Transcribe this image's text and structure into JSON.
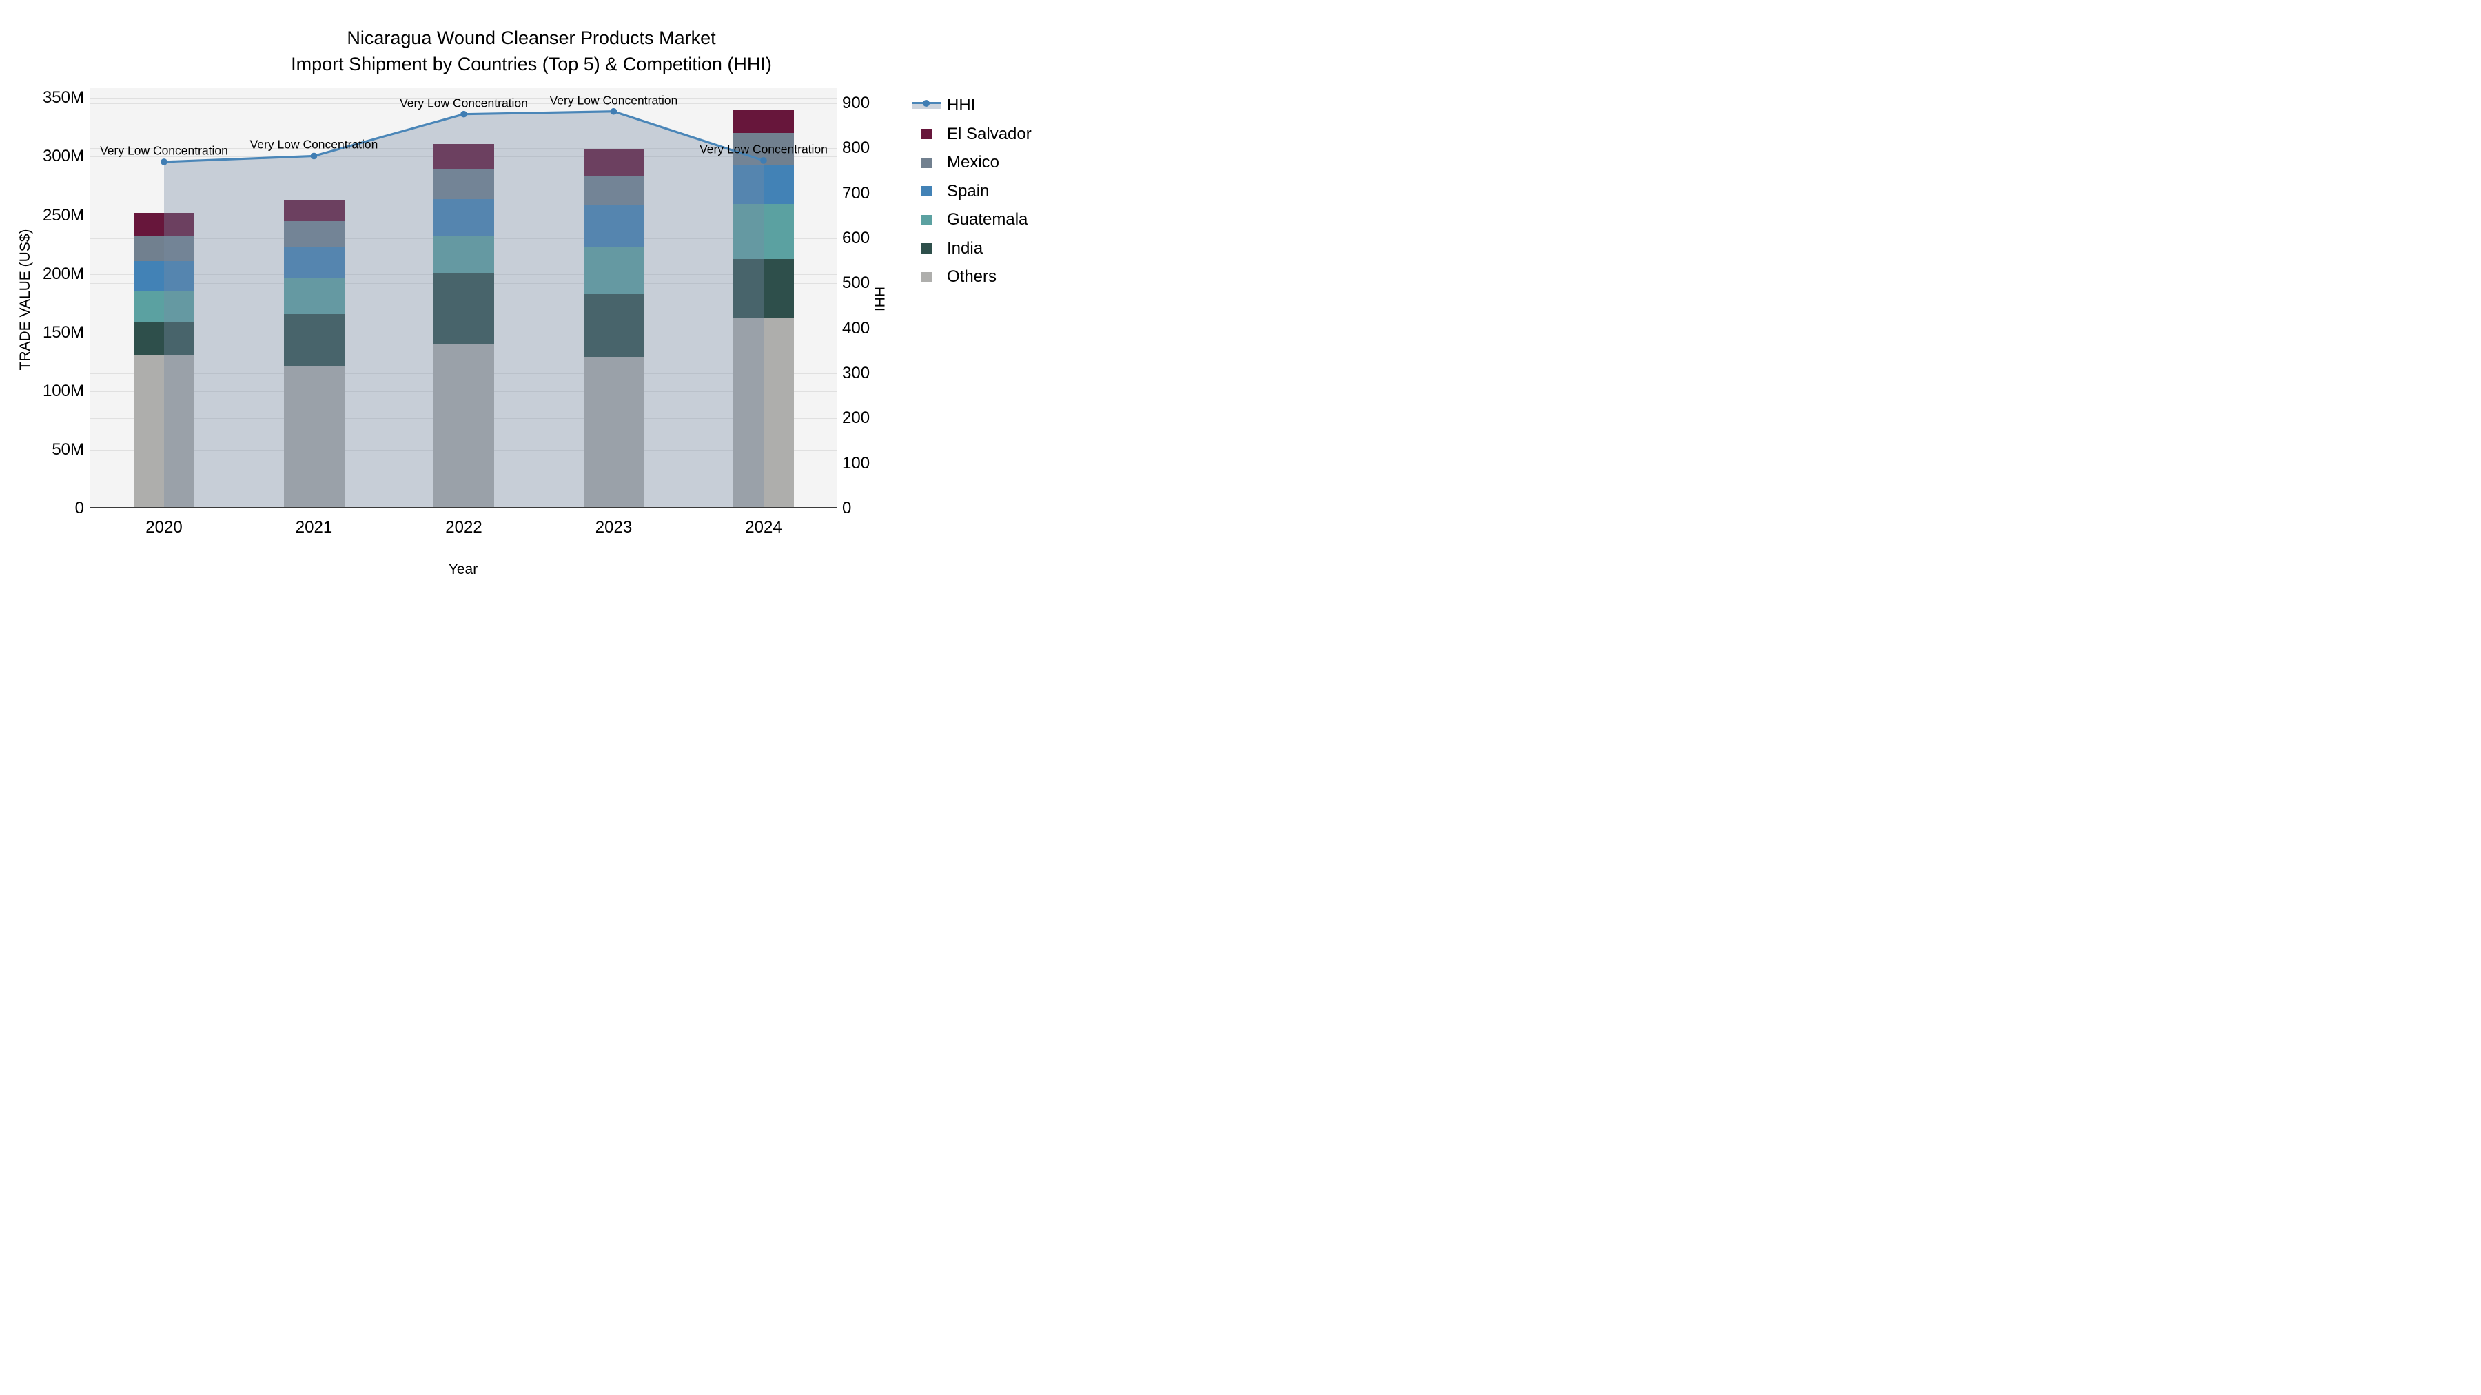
{
  "title": {
    "lines": [
      "Nicaragua Wound Cleanser Products Market",
      "Import Shipment by Countries (Top 5) & Competition (HHI)"
    ]
  },
  "axes": {
    "x": {
      "title": "Year",
      "categories": [
        "2020",
        "2021",
        "2022",
        "2023",
        "2024"
      ]
    },
    "y_left": {
      "title": "TRADE VALUE (US$)",
      "tick_labels": [
        "0",
        "50M",
        "100M",
        "150M",
        "200M",
        "250M",
        "300M",
        "350M"
      ],
      "tick_values": [
        0,
        50,
        100,
        150,
        200,
        250,
        300,
        350
      ],
      "range": [
        0,
        350
      ],
      "unit": "millions of US$"
    },
    "y_right": {
      "title": "HHI",
      "tick_labels": [
        "0",
        "100",
        "200",
        "300",
        "400",
        "500",
        "600",
        "700",
        "800",
        "900"
      ],
      "tick_values": [
        0,
        100,
        200,
        300,
        400,
        500,
        600,
        700,
        800,
        900
      ],
      "range": [
        0,
        900
      ]
    }
  },
  "legend": {
    "items": [
      {
        "label": "HHI",
        "marker": "line-area",
        "color": "#4a86b8"
      },
      {
        "label": "El Salvador",
        "marker": "square",
        "color": "#67163b"
      },
      {
        "label": "Mexico",
        "marker": "square",
        "color": "#71808f"
      },
      {
        "label": "Spain",
        "marker": "square",
        "color": "#4282b6"
      },
      {
        "label": "Guatemala",
        "marker": "square",
        "color": "#5ba1a1"
      },
      {
        "label": "India",
        "marker": "square",
        "color": "#2e4f4b"
      },
      {
        "label": "Others",
        "marker": "square",
        "color": "#aeaeac"
      }
    ]
  },
  "annotations": [
    {
      "year": "2020",
      "text": "Very Low Concentration"
    },
    {
      "year": "2021",
      "text": "Very Low Concentration"
    },
    {
      "year": "2022",
      "text": "Very Low Concentration"
    },
    {
      "year": "2023",
      "text": "Very Low Concentration"
    },
    {
      "year": "2024",
      "text": "Very Low Concentration"
    }
  ],
  "colors": {
    "hhi_line": "#4a86b8",
    "hhi_marker": "#3f7db3",
    "hhi_area_fill": "rgba(120,138,163,0.36)",
    "plot_background": "#f4f4f4",
    "gridline": "#e0e0e0",
    "axis_line": "#3a3a3a",
    "legend_band": "#ccd3dc"
  },
  "chart_data": [
    {
      "type": "bar",
      "stacked": true,
      "title": "Import Shipment by Countries (Top 5)",
      "categories": [
        "2020",
        "2021",
        "2022",
        "2023",
        "2024"
      ],
      "value_unit": "M = millions US$",
      "xlabel": "Year",
      "ylabel": "TRADE VALUE (US$)",
      "ylim": [
        0,
        350
      ],
      "legend_position": "right-outside",
      "grid": true,
      "series": [
        {
          "name": "Others",
          "color": "#aeaeac",
          "values": [
            131,
            121,
            140,
            129,
            163
          ]
        },
        {
          "name": "India",
          "color": "#2e4f4b",
          "values": [
            28,
            45,
            61,
            54,
            50
          ]
        },
        {
          "name": "Guatemala",
          "color": "#5ba1a1",
          "values": [
            26,
            31,
            31,
            40,
            47
          ]
        },
        {
          "name": "Spain",
          "color": "#4282b6",
          "values": [
            26,
            26,
            32,
            36,
            33
          ]
        },
        {
          "name": "Mexico",
          "color": "#71808f",
          "values": [
            21,
            22,
            26,
            25,
            27
          ]
        },
        {
          "name": "El Salvador",
          "color": "#67163b",
          "values": [
            20,
            18,
            21,
            22,
            20
          ]
        }
      ],
      "stack_totals": [
        252,
        263,
        311,
        306,
        340
      ]
    },
    {
      "type": "line",
      "name": "HHI",
      "color": "#4a86b8",
      "area_under_line": true,
      "x": [
        "2020",
        "2021",
        "2022",
        "2023",
        "2024"
      ],
      "values": [
        770,
        783,
        876,
        882,
        773
      ],
      "ylabel": "HHI",
      "ylim": [
        0,
        900
      ],
      "point_annotations": [
        "Very Low Concentration",
        "Very Low Concentration",
        "Very Low Concentration",
        "Very Low Concentration",
        "Very Low Concentration"
      ]
    }
  ]
}
